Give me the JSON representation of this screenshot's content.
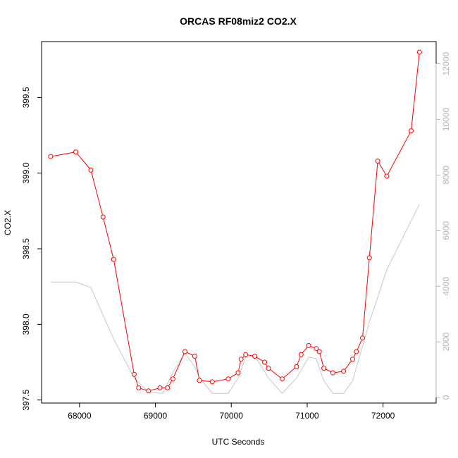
{
  "chart_data": {
    "type": "line",
    "title": "ORCAS RF08miz2 CO2.X",
    "xlabel": "UTC Seconds",
    "ylabel": "CO2.X",
    "xlim": [
      67500,
      72700
    ],
    "ylim": [
      397.48,
      399.87
    ],
    "y2lim": [
      -200,
      12800
    ],
    "x_ticks": [
      68000,
      69000,
      70000,
      71000,
      72000
    ],
    "y_ticks": [
      397.5,
      398.0,
      398.5,
      399.0,
      399.5
    ],
    "y2_ticks": [
      0,
      2000,
      4000,
      6000,
      8000,
      10000,
      12000
    ],
    "colors": {
      "primary": "#ff0000",
      "secondary": "#c8c8c8"
    },
    "series": [
      {
        "axis": "left",
        "color": "#ff0000",
        "style": "line+points",
        "x": [
          67620,
          67950,
          68150,
          68310,
          68450,
          68720,
          68780,
          68910,
          69060,
          69160,
          69230,
          69390,
          69520,
          69580,
          69750,
          69960,
          70090,
          70130,
          70190,
          70310,
          70440,
          70490,
          70670,
          70860,
          70920,
          71020,
          71120,
          71160,
          71220,
          71340,
          71480,
          71600,
          71650,
          71730,
          71820,
          71930,
          72050,
          72370,
          72480
        ],
        "y": [
          399.11,
          399.14,
          399.02,
          398.71,
          398.43,
          397.67,
          397.58,
          397.56,
          397.58,
          397.58,
          397.64,
          397.82,
          397.79,
          397.63,
          397.62,
          397.64,
          397.68,
          397.77,
          397.8,
          397.79,
          397.75,
          397.71,
          397.64,
          397.72,
          397.8,
          397.86,
          397.84,
          397.82,
          397.71,
          397.68,
          397.69,
          397.77,
          397.82,
          397.91,
          398.44,
          399.08,
          398.98,
          399.28,
          399.8
        ]
      },
      {
        "axis": "right",
        "color": "#c8c8c8",
        "style": "line",
        "x": [
          67620,
          67950,
          68150,
          68450,
          68720,
          68910,
          69100,
          69230,
          69390,
          69520,
          69580,
          69750,
          69960,
          70090,
          70190,
          70310,
          70490,
          70670,
          70860,
          71020,
          71120,
          71220,
          71340,
          71480,
          71600,
          71820,
          72050,
          72480
        ],
        "y": [
          4150,
          4150,
          3950,
          2100,
          700,
          200,
          150,
          900,
          1600,
          1100,
          700,
          150,
          150,
          700,
          1450,
          1500,
          700,
          150,
          700,
          1450,
          1400,
          600,
          150,
          150,
          600,
          2700,
          4600,
          6950
        ]
      }
    ]
  }
}
